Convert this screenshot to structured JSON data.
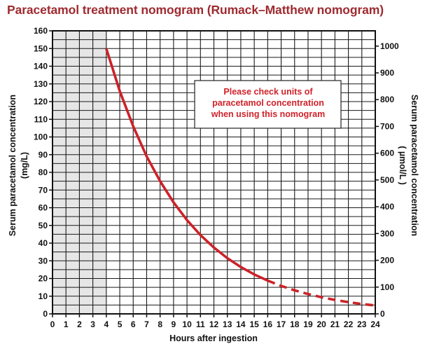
{
  "page": {
    "title": "Paracetamol treatment nomogram (Rumack–Matthew nomogram)"
  },
  "colors": {
    "title": "#9e2a2f",
    "treatment_line": "#cc2229",
    "note_text": "#d0222a",
    "shaded_region": "#e6e6e6",
    "grid": "#1a1a1a"
  },
  "chart_data": {
    "type": "line",
    "title": "Paracetamol treatment nomogram (Rumack–Matthew nomogram)",
    "xlabel": "Hours after ingestion",
    "ylabel_left": [
      "Serum paracetamol concentration",
      "(mg/L)"
    ],
    "ylabel_right": [
      "Serum paracetamol concentration",
      "( µmol/L )"
    ],
    "xlim": [
      0,
      24
    ],
    "ylim": [
      0,
      160
    ],
    "y2lim": [
      0,
      1057
    ],
    "x_ticks": [
      0,
      1,
      2,
      3,
      4,
      5,
      6,
      7,
      8,
      9,
      10,
      11,
      12,
      13,
      14,
      15,
      16,
      17,
      18,
      19,
      20,
      21,
      22,
      23,
      24
    ],
    "y_ticks": [
      0,
      10,
      20,
      30,
      40,
      50,
      60,
      70,
      80,
      90,
      100,
      110,
      120,
      130,
      140,
      150,
      160
    ],
    "y2_ticks": [
      0,
      100,
      200,
      300,
      400,
      500,
      600,
      700,
      800,
      900,
      1000
    ],
    "grid": true,
    "shaded_x_range": [
      0,
      4
    ],
    "series": [
      {
        "style": "solid",
        "x": [
          4,
          5,
          6,
          7,
          8,
          9,
          10,
          11,
          12,
          13,
          14,
          15,
          16
        ],
        "y": [
          150,
          126,
          106,
          89,
          75,
          63,
          53,
          44.5,
          37.5,
          31.5,
          26.5,
          22.3,
          18.8
        ]
      },
      {
        "style": "dashed",
        "x": [
          16,
          17,
          18,
          19,
          20,
          21,
          22,
          23,
          24
        ],
        "y": [
          18.8,
          15.8,
          13.3,
          11.2,
          9.4,
          7.9,
          6.6,
          5.6,
          4.7
        ]
      }
    ],
    "annotations": [
      "Please check units of",
      "paracetamol concentration",
      "when using this nomogram"
    ]
  }
}
